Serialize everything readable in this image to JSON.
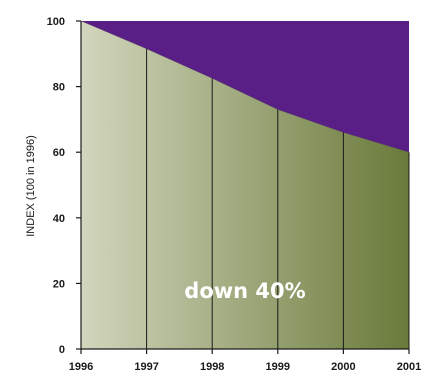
{
  "chart_data": {
    "type": "area",
    "x": [
      1996,
      1997,
      1998,
      1999,
      2000,
      2001
    ],
    "series": [
      {
        "values": [
          100,
          91.5,
          82.5,
          73,
          66,
          60
        ]
      }
    ],
    "x_ticks": [
      "1996",
      "1997",
      "1998",
      "1999",
      "2000",
      "2001"
    ],
    "y_ticks": [
      "0",
      "20",
      "40",
      "60",
      "80",
      "100"
    ],
    "xlim": [
      1996,
      2001
    ],
    "ylim": [
      0,
      100
    ],
    "xlabel": "",
    "ylabel": "INDEX (100 in 1996)",
    "annotation": "down 40%",
    "grid": "vertical lines at each year",
    "colors": {
      "area_gradient_start": "#d2d6bd",
      "area_gradient_end": "#6a7a3a",
      "upper_fill": "#5a1f86",
      "lines": "#1a1a1a",
      "annotation_text": "#ffffff"
    }
  }
}
